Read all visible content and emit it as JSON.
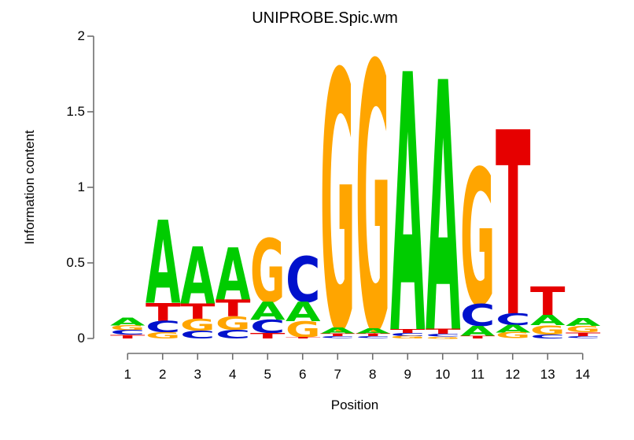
{
  "title": "UNIPROBE.Spic.wm",
  "y_axis": {
    "label": "Information content",
    "tick_labels": [
      "0",
      "0.5",
      "1",
      "1.5",
      "2"
    ],
    "tick_values": [
      0,
      0.5,
      1,
      1.5,
      2
    ],
    "range": [
      0,
      2
    ]
  },
  "x_axis": {
    "label": "Position",
    "tick_labels": [
      "1",
      "2",
      "3",
      "4",
      "5",
      "6",
      "7",
      "8",
      "9",
      "10",
      "11",
      "12",
      "13",
      "14"
    ]
  },
  "colors": {
    "A": "#00CC00",
    "C": "#0011CC",
    "G": "#FFA500",
    "T": "#E60000",
    "axis_line": "#6e6e6e",
    "text": "#000000"
  },
  "chart_data": {
    "type": "bar",
    "variant": "sequence-logo-stacked-letters",
    "title": "UNIPROBE.Spic.wm",
    "xlabel": "Position",
    "ylabel": "Information content",
    "ylim": [
      0,
      2
    ],
    "grid": false,
    "legend": false,
    "categories": [
      1,
      2,
      3,
      4,
      5,
      6,
      7,
      8,
      9,
      10,
      11,
      12,
      13,
      14
    ],
    "stacks_note": "letters listed top-to-bottom of each stack; bits = information content height",
    "stacks": [
      [
        {
          "letter": "A",
          "bits": 0.05
        },
        {
          "letter": "G",
          "bits": 0.033
        },
        {
          "letter": "C",
          "bits": 0.03
        },
        {
          "letter": "T",
          "bits": 0.025
        }
      ],
      [
        {
          "letter": "A",
          "bits": 0.55
        },
        {
          "letter": "T",
          "bits": 0.12
        },
        {
          "letter": "C",
          "bits": 0.073
        },
        {
          "letter": "G",
          "bits": 0.042
        }
      ],
      [
        {
          "letter": "A",
          "bits": 0.38
        },
        {
          "letter": "T",
          "bits": 0.1
        },
        {
          "letter": "G",
          "bits": 0.078
        },
        {
          "letter": "C",
          "bits": 0.052
        }
      ],
      [
        {
          "letter": "A",
          "bits": 0.35
        },
        {
          "letter": "T",
          "bits": 0.11
        },
        {
          "letter": "G",
          "bits": 0.088
        },
        {
          "letter": "C",
          "bits": 0.057
        }
      ],
      [
        {
          "letter": "G",
          "bits": 0.42
        },
        {
          "letter": "A",
          "bits": 0.12
        },
        {
          "letter": "C",
          "bits": 0.088
        },
        {
          "letter": "T",
          "bits": 0.036
        }
      ],
      [
        {
          "letter": "C",
          "bits": 0.3
        },
        {
          "letter": "A",
          "bits": 0.13
        },
        {
          "letter": "G",
          "bits": 0.104
        },
        {
          "letter": "T",
          "bits": 0.01
        }
      ],
      [
        {
          "letter": "G",
          "bits": 1.71
        },
        {
          "letter": "A",
          "bits": 0.042
        },
        {
          "letter": "T",
          "bits": 0.016
        },
        {
          "letter": "C",
          "bits": 0.014
        }
      ],
      [
        {
          "letter": "G",
          "bits": 1.77
        },
        {
          "letter": "A",
          "bits": 0.037
        },
        {
          "letter": "T",
          "bits": 0.016
        },
        {
          "letter": "C",
          "bits": 0.013
        }
      ],
      [
        {
          "letter": "A",
          "bits": 1.71
        },
        {
          "letter": "T",
          "bits": 0.026
        },
        {
          "letter": "C",
          "bits": 0.021
        },
        {
          "letter": "G",
          "bits": 0.016
        }
      ],
      [
        {
          "letter": "A",
          "bits": 1.66
        },
        {
          "letter": "T",
          "bits": 0.032
        },
        {
          "letter": "C",
          "bits": 0.017
        },
        {
          "letter": "G",
          "bits": 0.012
        }
      ],
      [
        {
          "letter": "G",
          "bits": 0.9
        },
        {
          "letter": "C",
          "bits": 0.145
        },
        {
          "letter": "A",
          "bits": 0.068
        },
        {
          "letter": "T",
          "bits": 0.016
        }
      ],
      [
        {
          "letter": "T",
          "bits": 1.22
        },
        {
          "letter": "C",
          "bits": 0.078
        },
        {
          "letter": "A",
          "bits": 0.05
        },
        {
          "letter": "G",
          "bits": 0.04
        }
      ],
      [
        {
          "letter": "T",
          "bits": 0.19
        },
        {
          "letter": "A",
          "bits": 0.068
        },
        {
          "letter": "G",
          "bits": 0.062
        },
        {
          "letter": "C",
          "bits": 0.026
        }
      ],
      [
        {
          "letter": "A",
          "bits": 0.052
        },
        {
          "letter": "G",
          "bits": 0.042
        },
        {
          "letter": "T",
          "bits": 0.028
        },
        {
          "letter": "C",
          "bits": 0.014
        }
      ]
    ]
  }
}
